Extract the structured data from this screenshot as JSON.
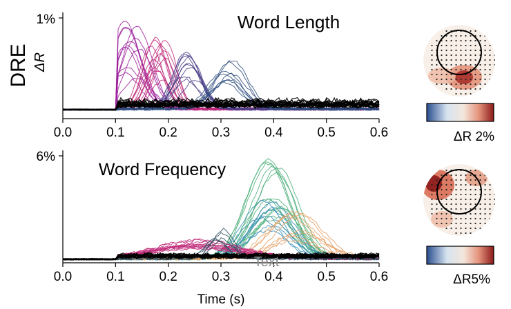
{
  "figure": {
    "row_label": "DRE",
    "xlabel": "Time (s)"
  },
  "chart_data": [
    {
      "type": "line",
      "title": "Word Length",
      "ylabel": "ΔR",
      "ytick_label": "1%",
      "xlim": [
        0.0,
        0.6
      ],
      "ylim": [
        0,
        1
      ],
      "xticks": [
        "0.0",
        "0.1",
        "0.2",
        "0.3",
        "0.4",
        "0.5",
        "0.6"
      ],
      "grid": false,
      "series_groups": [
        {
          "color": "#9c1f9c",
          "peak_time": 0.13,
          "peak_value": 0.95,
          "width": 0.028,
          "count": 12
        },
        {
          "color": "#c02b7a",
          "peak_time": 0.18,
          "peak_value": 0.78,
          "width": 0.022,
          "count": 12
        },
        {
          "color": "#4a3f8a",
          "peak_time": 0.24,
          "peak_value": 0.62,
          "width": 0.025,
          "count": 10
        },
        {
          "color": "#2f4f7f",
          "peak_time": 0.31,
          "peak_value": 0.55,
          "width": 0.03,
          "count": 8
        },
        {
          "color": "#000000",
          "peak_time": 0.3,
          "peak_value": 0.12,
          "width": 0.1,
          "count": 20
        }
      ],
      "colorbar": {
        "label": "ΔR 2%",
        "colors": [
          "#2a4d8f",
          "#d6e4f0",
          "#f4e6dc",
          "#e3917a",
          "#8b1a1a"
        ]
      },
      "topomap": {
        "hotspot": "bottom-right",
        "colors": [
          "#f7efe8",
          "#e08a6e",
          "#a8322a"
        ]
      }
    },
    {
      "type": "line",
      "title": "Word Frequency",
      "ylabel": "",
      "ytick_label": "6%",
      "xlim": [
        0.0,
        0.6
      ],
      "ylim": [
        0,
        1
      ],
      "xticks": [
        "0.0",
        "0.1",
        "0.2",
        "0.3",
        "0.4",
        "0.5",
        "0.6"
      ],
      "grid": false,
      "annotation": "Text",
      "series_groups": [
        {
          "color": "#4caf7a",
          "peak_time": 0.4,
          "peak_value": 0.97,
          "width": 0.04,
          "count": 14
        },
        {
          "color": "#3a8fb7",
          "peak_time": 0.39,
          "peak_value": 0.55,
          "width": 0.04,
          "count": 8
        },
        {
          "color": "#e8a064",
          "peak_time": 0.44,
          "peak_value": 0.45,
          "width": 0.045,
          "count": 8
        },
        {
          "color": "#c02b7a",
          "peak_time": 0.25,
          "peak_value": 0.18,
          "width": 0.08,
          "count": 12
        },
        {
          "color": "#2f4f5f",
          "peak_time": 0.29,
          "peak_value": 0.3,
          "width": 0.02,
          "count": 5
        },
        {
          "color": "#000000",
          "peak_time": 0.35,
          "peak_value": 0.05,
          "width": 0.12,
          "count": 18
        }
      ],
      "colorbar": {
        "label": "ΔR5%",
        "colors": [
          "#2a4d8f",
          "#d6e4f0",
          "#f4e6dc",
          "#e3917a",
          "#8b1a1a"
        ]
      },
      "topomap": {
        "hotspot": "left",
        "colors": [
          "#f7efe8",
          "#e08a6e",
          "#a8322a"
        ]
      }
    }
  ]
}
